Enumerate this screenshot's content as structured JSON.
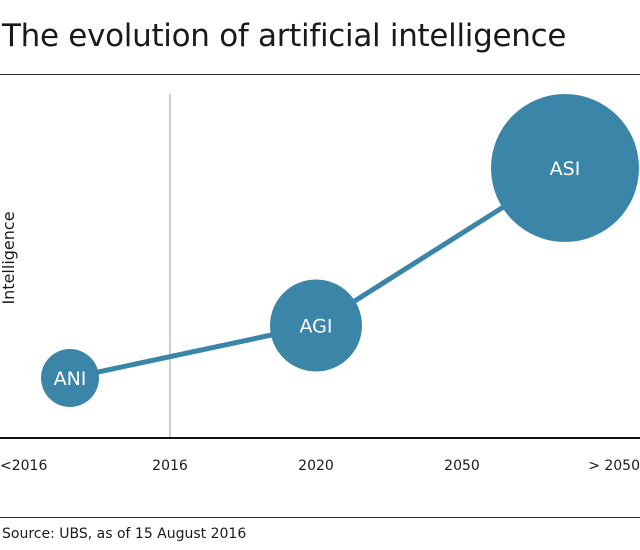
{
  "colors": {
    "accent": "#3a85a8",
    "axis": "#111111",
    "divider": "#999999",
    "bubble_text": "#ffffff"
  },
  "chart_data": {
    "type": "scatter",
    "title": "The evolution of artificial intelligence",
    "xlabel": "",
    "ylabel": "Intelligence",
    "categories": [
      "<2016",
      "2016",
      "2020",
      "2050",
      "> 2050"
    ],
    "divider_at": "2016",
    "grid": false,
    "legend": "none",
    "points": [
      {
        "label": "ANI",
        "x": "<2016",
        "y": 1,
        "size": 1
      },
      {
        "label": "AGI",
        "x": "2020",
        "y": 2,
        "size": 2
      },
      {
        "label": "ASI",
        "x": "> 2050",
        "y": 5,
        "size": 3
      }
    ]
  },
  "footer": {
    "source": "Source: UBS, as of 15 August 2016"
  }
}
